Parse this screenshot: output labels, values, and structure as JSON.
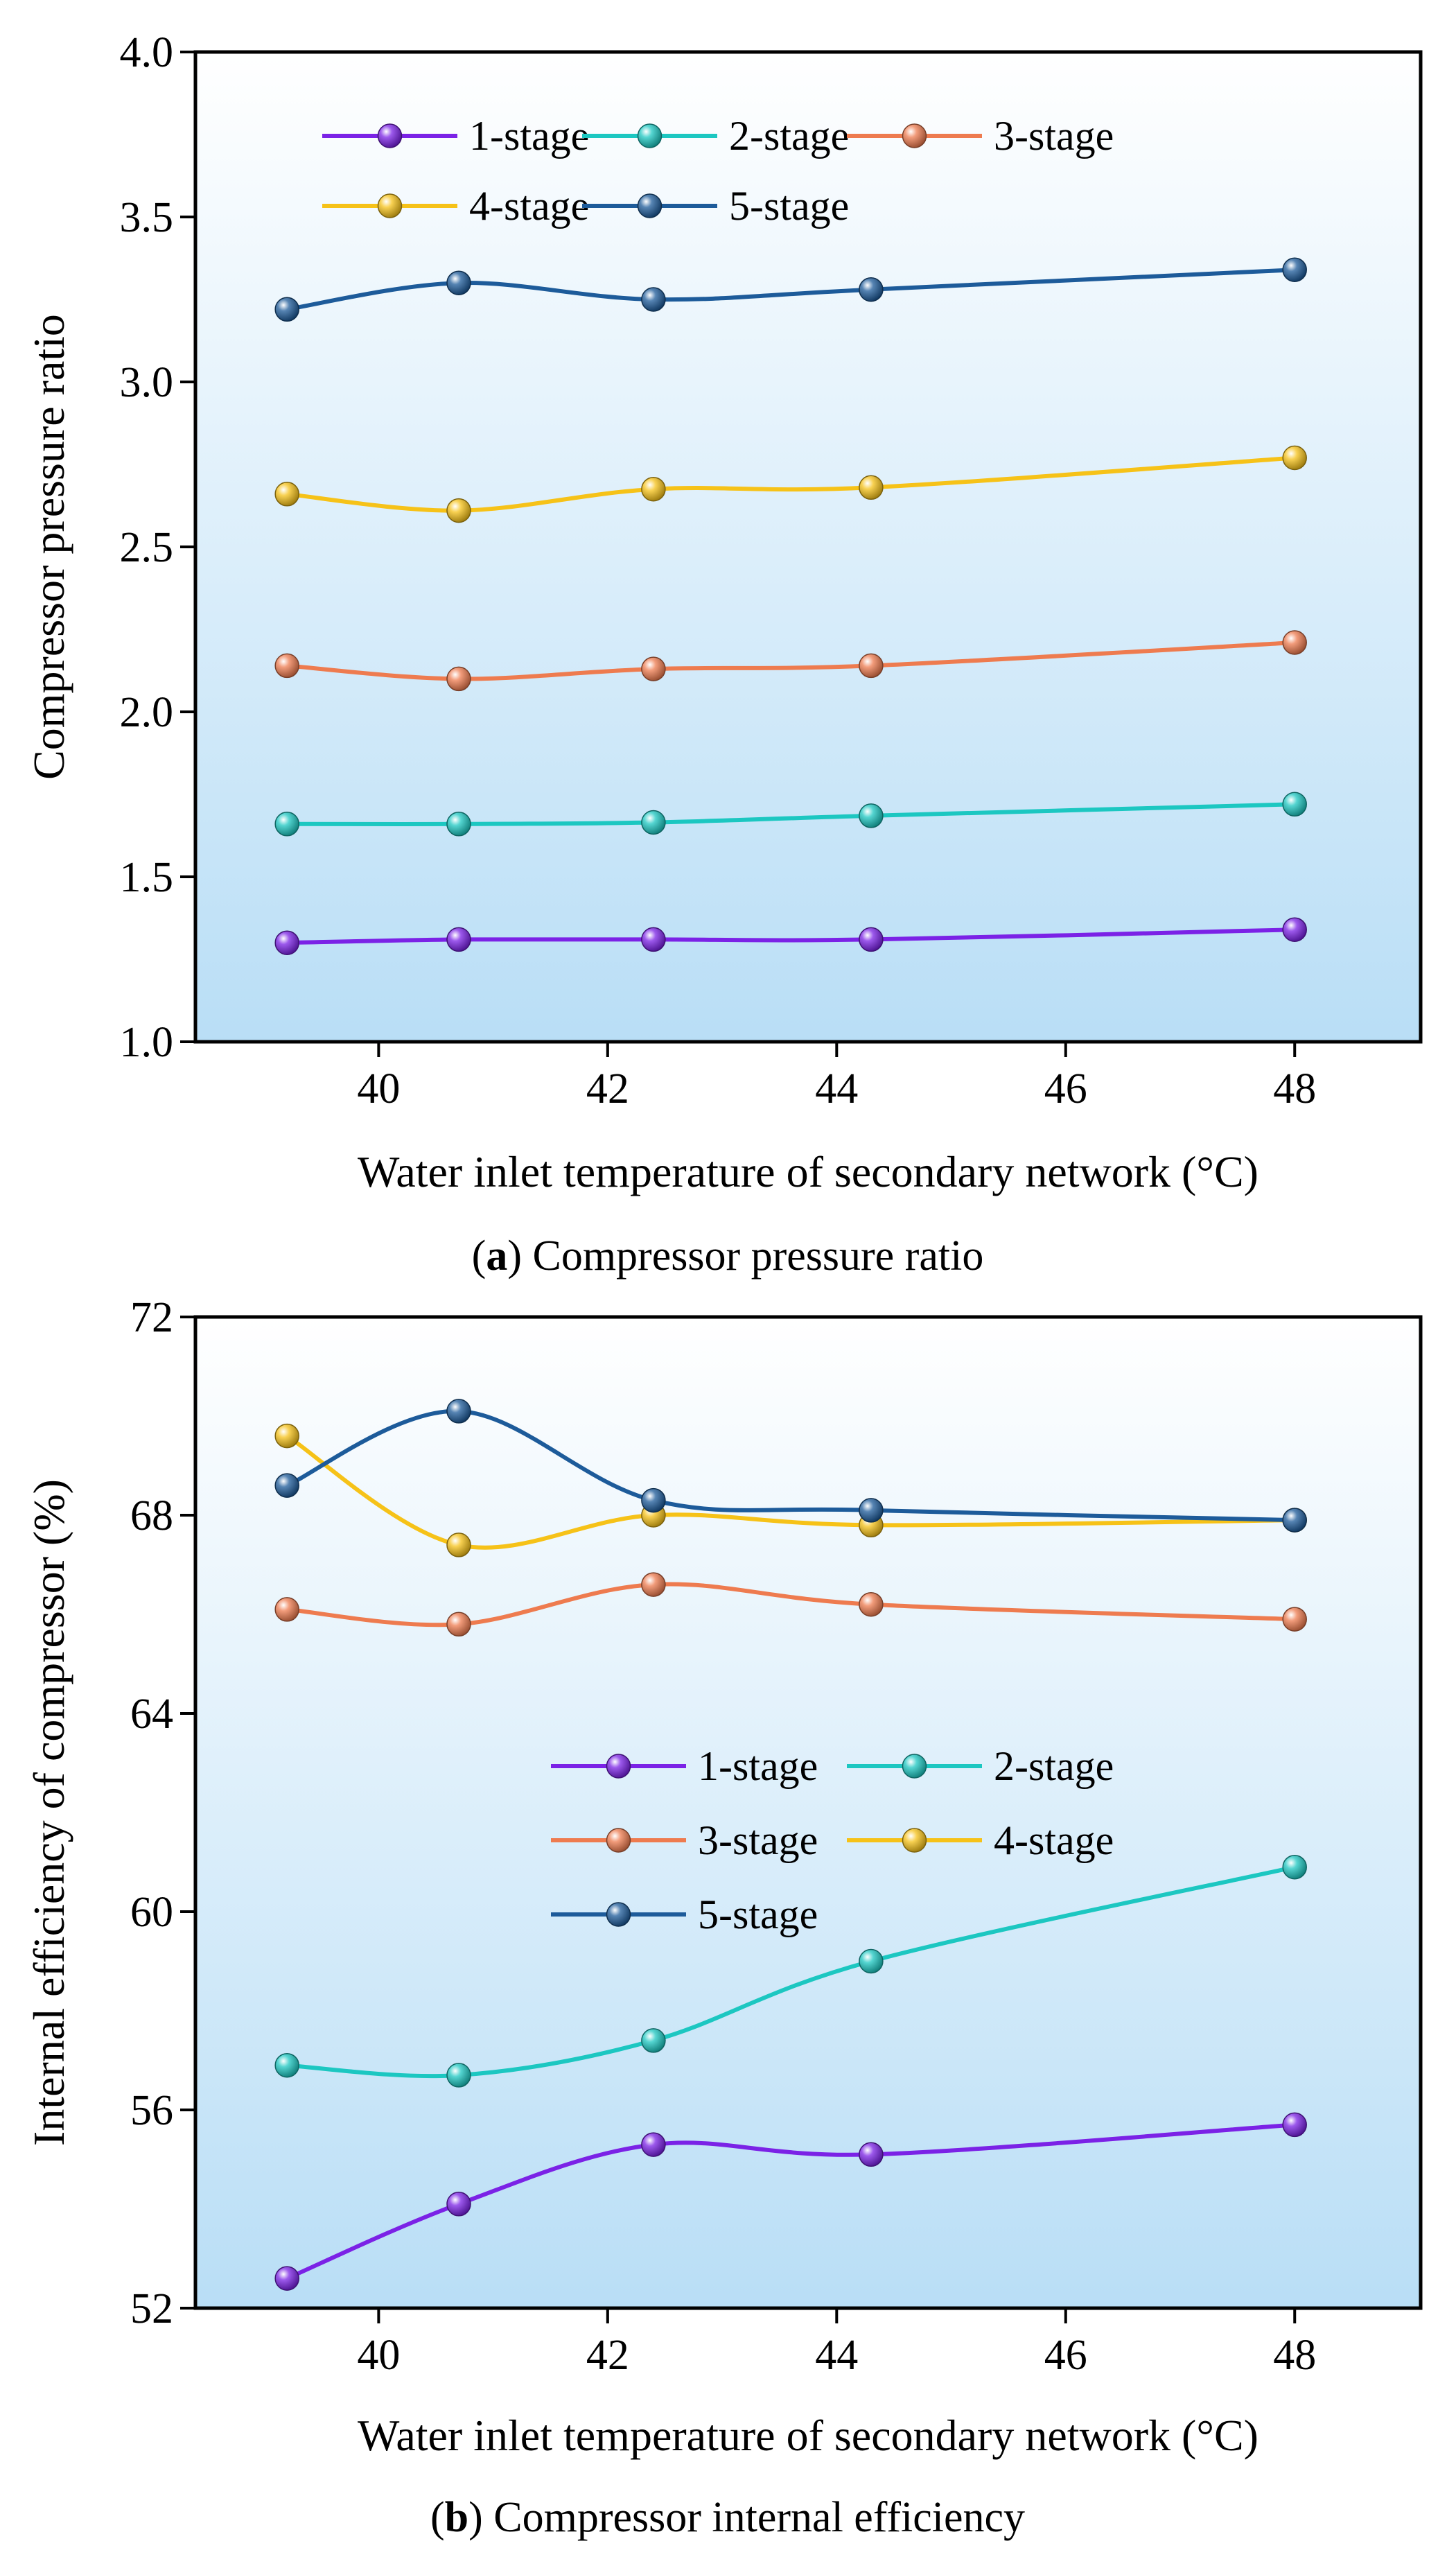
{
  "chart_data": [
    {
      "id": "a",
      "type": "line",
      "title": "",
      "caption_letter": "a",
      "caption_text": "Compressor pressure ratio",
      "xlabel": "Water inlet temperature of secondary network (°C)",
      "ylabel": "Compressor pressure ratio",
      "xlim": [
        38.4,
        49.1
      ],
      "ylim": [
        1.0,
        4.0
      ],
      "xticks": [
        40,
        42,
        44,
        46,
        48
      ],
      "xtick_labels": [
        "40",
        "42",
        "44",
        "46",
        "48"
      ],
      "yticks": [
        1.0,
        1.5,
        2.0,
        2.5,
        3.0,
        3.5,
        4.0
      ],
      "ytick_labels": [
        "1.0",
        "1.5",
        "2.0",
        "2.5",
        "3.0",
        "3.5",
        "4.0"
      ],
      "x": [
        39.2,
        40.7,
        42.4,
        44.3,
        48.0
      ],
      "legend_position": "top-left",
      "legend_columns": 3,
      "series": [
        {
          "name": "1-stage",
          "color": "#7B22E6",
          "values": [
            1.3,
            1.31,
            1.31,
            1.31,
            1.34
          ]
        },
        {
          "name": "2-stage",
          "color": "#1CC7C1",
          "values": [
            1.66,
            1.66,
            1.665,
            1.685,
            1.72
          ]
        },
        {
          "name": "3-stage",
          "color": "#EE7B4F",
          "values": [
            2.14,
            2.1,
            2.13,
            2.14,
            2.21
          ]
        },
        {
          "name": "4-stage",
          "color": "#F6C218",
          "values": [
            2.66,
            2.61,
            2.675,
            2.68,
            2.77
          ]
        },
        {
          "name": "5-stage",
          "color": "#1D5B9A",
          "values": [
            3.22,
            3.3,
            3.25,
            3.28,
            3.34
          ]
        }
      ]
    },
    {
      "id": "b",
      "type": "line",
      "title": "",
      "caption_letter": "b",
      "caption_text": "Compressor internal efficiency",
      "xlabel": "Water inlet temperature of secondary network (°C)",
      "ylabel": "Internal efficiency of compressor  (%)",
      "xlim": [
        38.4,
        49.1
      ],
      "ylim": [
        52,
        72
      ],
      "xticks": [
        40,
        42,
        44,
        46,
        48
      ],
      "xtick_labels": [
        "40",
        "42",
        "44",
        "46",
        "48"
      ],
      "yticks": [
        52,
        56,
        60,
        64,
        68,
        72
      ],
      "ytick_labels": [
        "52",
        "56",
        "60",
        "64",
        "68",
        "72"
      ],
      "x": [
        39.2,
        40.7,
        42.4,
        44.3,
        48.0
      ],
      "legend_position": "center",
      "legend_columns": 2,
      "series": [
        {
          "name": "1-stage",
          "color": "#7B22E6",
          "values": [
            52.6,
            54.1,
            55.3,
            55.1,
            55.7
          ]
        },
        {
          "name": "2-stage",
          "color": "#1CC7C1",
          "values": [
            56.9,
            56.7,
            57.4,
            59.0,
            60.9
          ]
        },
        {
          "name": "3-stage",
          "color": "#EE7B4F",
          "values": [
            66.1,
            65.8,
            66.6,
            66.2,
            65.9
          ]
        },
        {
          "name": "4-stage",
          "color": "#F6C218",
          "values": [
            69.6,
            67.4,
            68.0,
            67.8,
            67.9
          ]
        },
        {
          "name": "5-stage",
          "color": "#1D5B9A",
          "values": [
            68.6,
            70.1,
            68.3,
            68.1,
            67.9
          ]
        }
      ]
    }
  ]
}
